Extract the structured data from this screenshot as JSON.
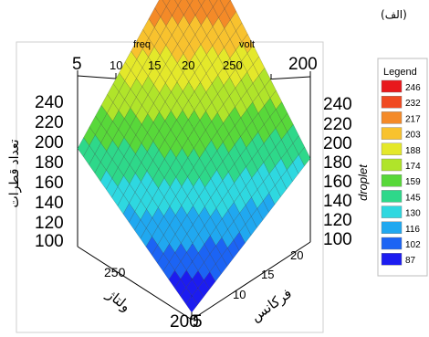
{
  "panel_label": "(الف)",
  "chart_data": {
    "type": "surface3d",
    "axes": {
      "top_freq_label": "freq",
      "top_volt_label": "volt",
      "bottom_volt_label": "ولتاژ",
      "bottom_freq_label": "فرکانس",
      "left_z_label": "تعداد قطرات",
      "right_z_label": "droplet"
    },
    "freq_ticks": [
      "5",
      "10",
      "15",
      "20"
    ],
    "volt_ticks": [
      "250",
      "200"
    ],
    "z_ticks": [
      "240",
      "220",
      "200",
      "180",
      "160",
      "140",
      "120",
      "100"
    ],
    "bottom_freq_ticks": [
      "20",
      "15",
      "10",
      "5"
    ],
    "bottom_volt_ticks": [
      "250",
      "200"
    ],
    "zlim": [
      87,
      246
    ],
    "corner_values": {
      "volt200_freq5": 87,
      "volt250_freq5": 150,
      "volt200_freq20": 140,
      "volt250_freq20": 246
    },
    "legend": {
      "title": "Legend",
      "entries": [
        {
          "value": "246",
          "color": "#e8181c"
        },
        {
          "value": "232",
          "color": "#f04a22"
        },
        {
          "value": "217",
          "color": "#f48a28"
        },
        {
          "value": "203",
          "color": "#f8c22e"
        },
        {
          "value": "188",
          "color": "#e4e82a"
        },
        {
          "value": "174",
          "color": "#b0e42a"
        },
        {
          "value": "159",
          "color": "#58d83a"
        },
        {
          "value": "145",
          "color": "#2ed88a"
        },
        {
          "value": "130",
          "color": "#2ed8e0"
        },
        {
          "value": "116",
          "color": "#20a8f0"
        },
        {
          "value": "102",
          "color": "#1c64f4"
        },
        {
          "value": "87",
          "color": "#1c1cf0"
        }
      ]
    }
  }
}
